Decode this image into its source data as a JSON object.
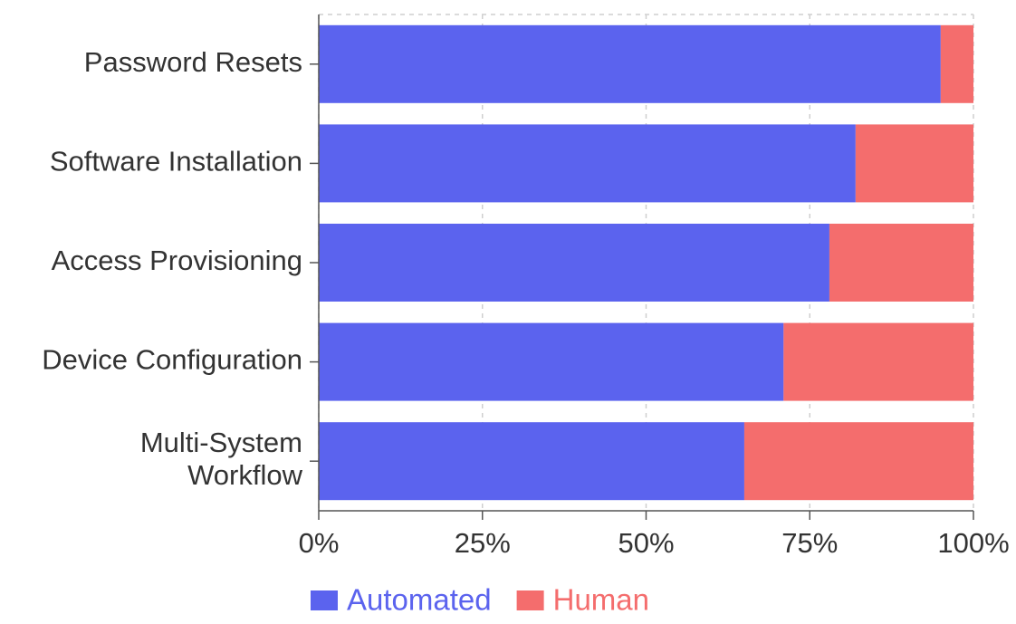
{
  "chart_data": {
    "type": "bar",
    "orientation": "horizontal",
    "stacked": true,
    "normalized": true,
    "categories": [
      "Password Resets",
      "Software Installation",
      "Access Provisioning",
      "Device Configuration",
      [
        "Multi-System",
        "Workflow"
      ]
    ],
    "series": [
      {
        "name": "Automated",
        "color": "#5b63ee",
        "values": [
          95,
          82,
          78,
          71,
          65
        ]
      },
      {
        "name": "Human",
        "color": "#f46d6d",
        "values": [
          5,
          18,
          22,
          29,
          35
        ]
      }
    ],
    "xlim": [
      0,
      100
    ],
    "x_ticks": [
      "0%",
      "25%",
      "50%",
      "75%",
      "100%"
    ],
    "grid": true,
    "legend_position": "bottom"
  }
}
